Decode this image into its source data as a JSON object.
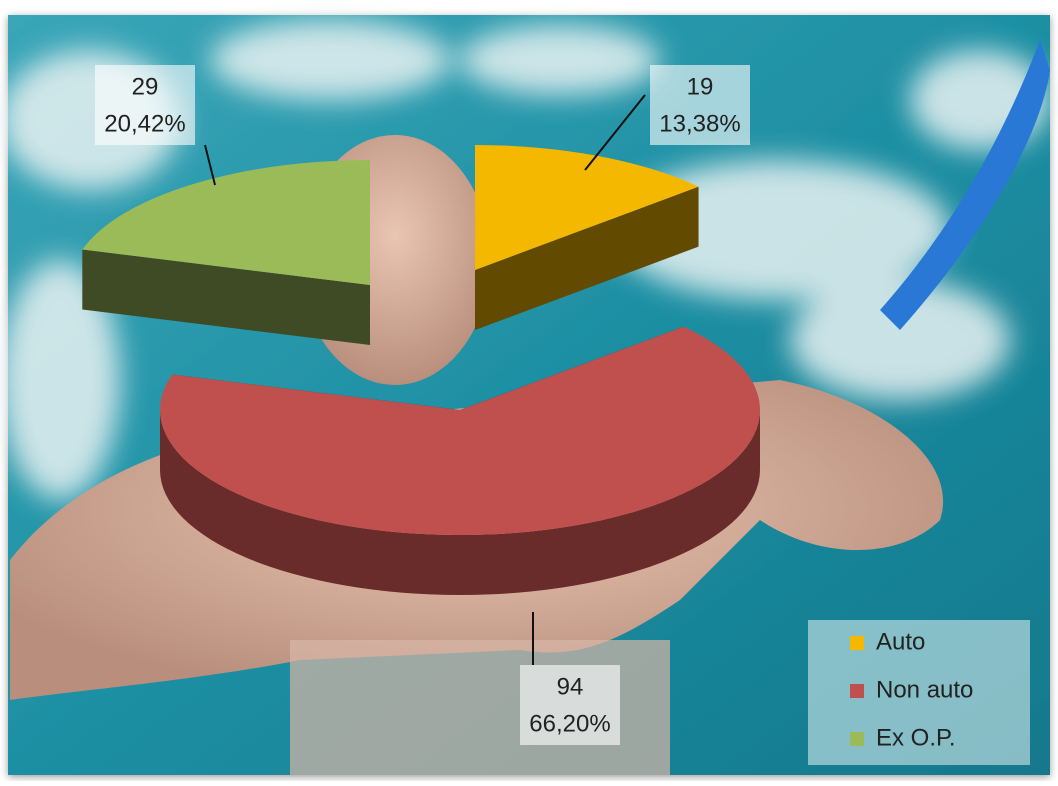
{
  "chart_data": {
    "type": "pie3d",
    "categories": [
      "Auto",
      "Non auto",
      "Ex O.P."
    ],
    "values": [
      19,
      94,
      29
    ],
    "percents": [
      13.38,
      66.2,
      20.42
    ],
    "percent_labels": [
      "13,38%",
      "66,20%",
      "20,42%"
    ],
    "colors": [
      "#f5b800",
      "#c0504d",
      "#9bbb59"
    ],
    "legend": "bottom-right"
  }
}
